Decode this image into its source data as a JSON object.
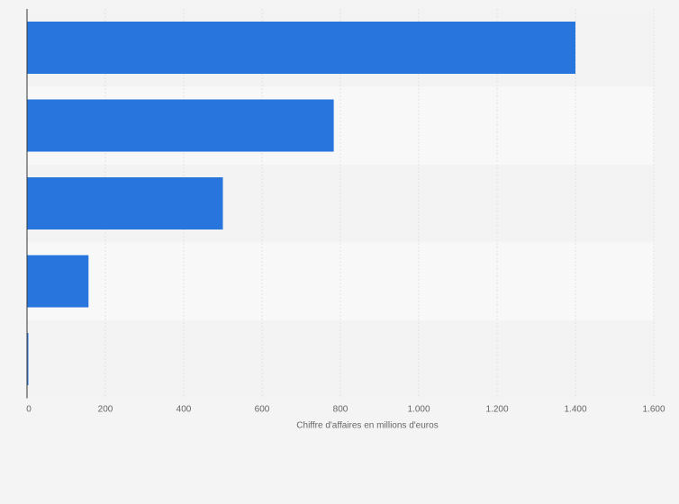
{
  "colors": {
    "bar": "#2876dd",
    "band_dark": "#f3f3f3",
    "band_light": "#f8f8f8",
    "grid": "#e2e2e2",
    "axis": "#333333",
    "text": "#666666",
    "background": "#f4f4f4"
  },
  "chart_data": {
    "type": "bar",
    "orientation": "horizontal",
    "categories": [
      "",
      "",
      "",
      "",
      ""
    ],
    "values": [
      1400,
      783,
      500,
      157,
      3
    ],
    "title": "",
    "xlabel": "Chiffre d'affaires en millions d'euros",
    "ylabel": "",
    "xlim": [
      0,
      1600
    ],
    "xticks": [
      0,
      200,
      400,
      600,
      800,
      1000,
      1200,
      1400,
      1600
    ],
    "xtick_labels": [
      "0",
      "200",
      "400",
      "600",
      "800",
      "1.000",
      "1.200",
      "1.400",
      "1.600"
    ],
    "grid": true,
    "legend": "none"
  }
}
